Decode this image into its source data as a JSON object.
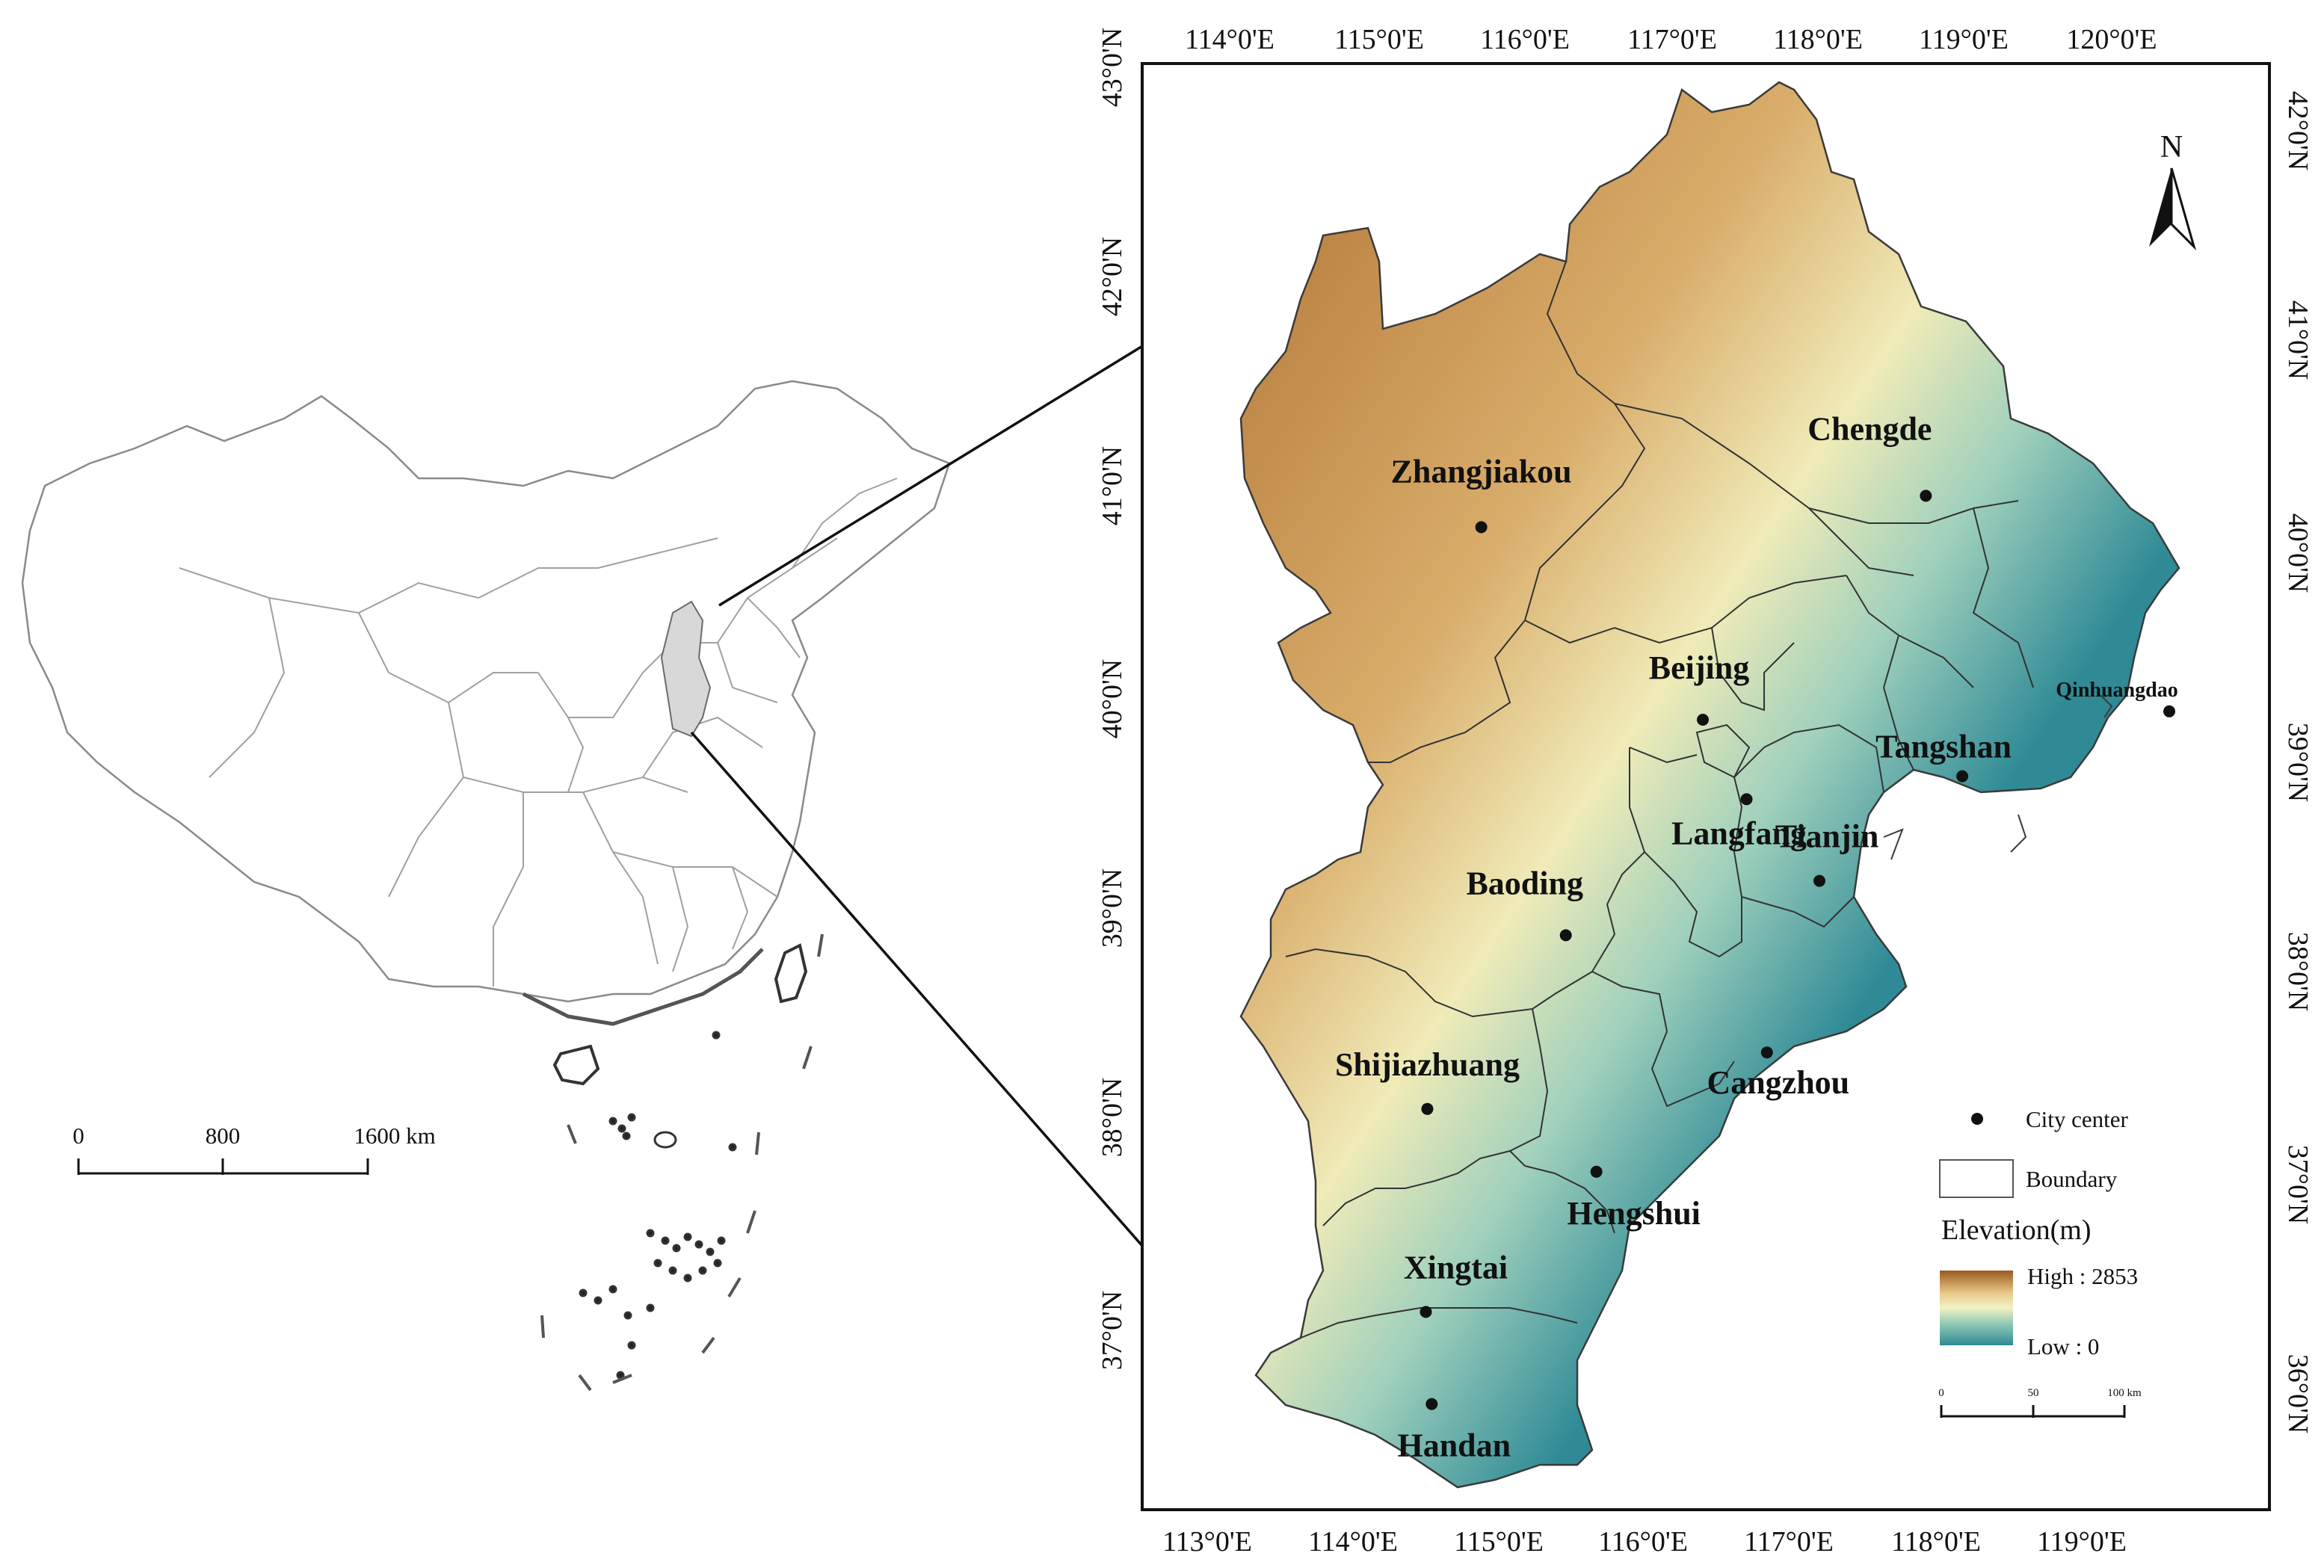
{
  "overview_map": {
    "scale_bar": {
      "labels": [
        "0",
        "800",
        "1600 km"
      ]
    }
  },
  "main_map": {
    "top_ticks": [
      "114°0'E",
      "115°0'E",
      "116°0'E",
      "117°0'E",
      "118°0'E",
      "119°0'E",
      "120°0'E"
    ],
    "bottom_ticks": [
      "113°0'E",
      "114°0'E",
      "115°0'E",
      "116°0'E",
      "117°0'E",
      "118°0'E",
      "119°0'E"
    ],
    "left_ticks": [
      "43°0'N",
      "42°0'N",
      "41°0'N",
      "40°0'N",
      "39°0'N",
      "38°0'N",
      "37°0'N"
    ],
    "right_ticks": [
      "42°0'N",
      "41°0'N",
      "40°0'N",
      "39°0'N",
      "38°0'N",
      "37°0'N",
      "36°0'N"
    ],
    "north_arrow": "N",
    "cities": [
      {
        "name": "Zhangjiakou",
        "lon": 114.88,
        "lat": 40.82
      },
      {
        "name": "Chengde",
        "lon": 117.93,
        "lat": 40.97
      },
      {
        "name": "Beijing",
        "lon": 116.4,
        "lat": 39.9
      },
      {
        "name": "Qinhuangdao",
        "lon": 119.6,
        "lat": 39.94
      },
      {
        "name": "Tangshan",
        "lon": 118.18,
        "lat": 39.63
      },
      {
        "name": "Tianjin",
        "lon": 117.2,
        "lat": 39.13
      },
      {
        "name": "Langfang",
        "lon": 116.7,
        "lat": 39.52
      },
      {
        "name": "Baoding",
        "lon": 115.46,
        "lat": 38.87
      },
      {
        "name": "Cangzhou",
        "lon": 116.84,
        "lat": 38.31
      },
      {
        "name": "Shijiazhuang",
        "lon": 114.51,
        "lat": 38.04
      },
      {
        "name": "Hengshui",
        "lon": 115.67,
        "lat": 37.74
      },
      {
        "name": "Xingtai",
        "lon": 114.5,
        "lat": 37.07
      },
      {
        "name": "Handan",
        "lon": 114.54,
        "lat": 36.63
      }
    ],
    "legend": {
      "city_center": "City center",
      "boundary": "Boundary",
      "elevation_title": "Elevation(m)",
      "high": "High : 2853",
      "low": "Low : 0",
      "scale_labels": [
        "0",
        "50",
        "100 km"
      ],
      "colors": {
        "high": "#9b5a1e",
        "mid_high": "#e8c88a",
        "mid": "#f1f2c4",
        "mid_low": "#8ec7b5",
        "low": "#2f8a96"
      }
    }
  }
}
